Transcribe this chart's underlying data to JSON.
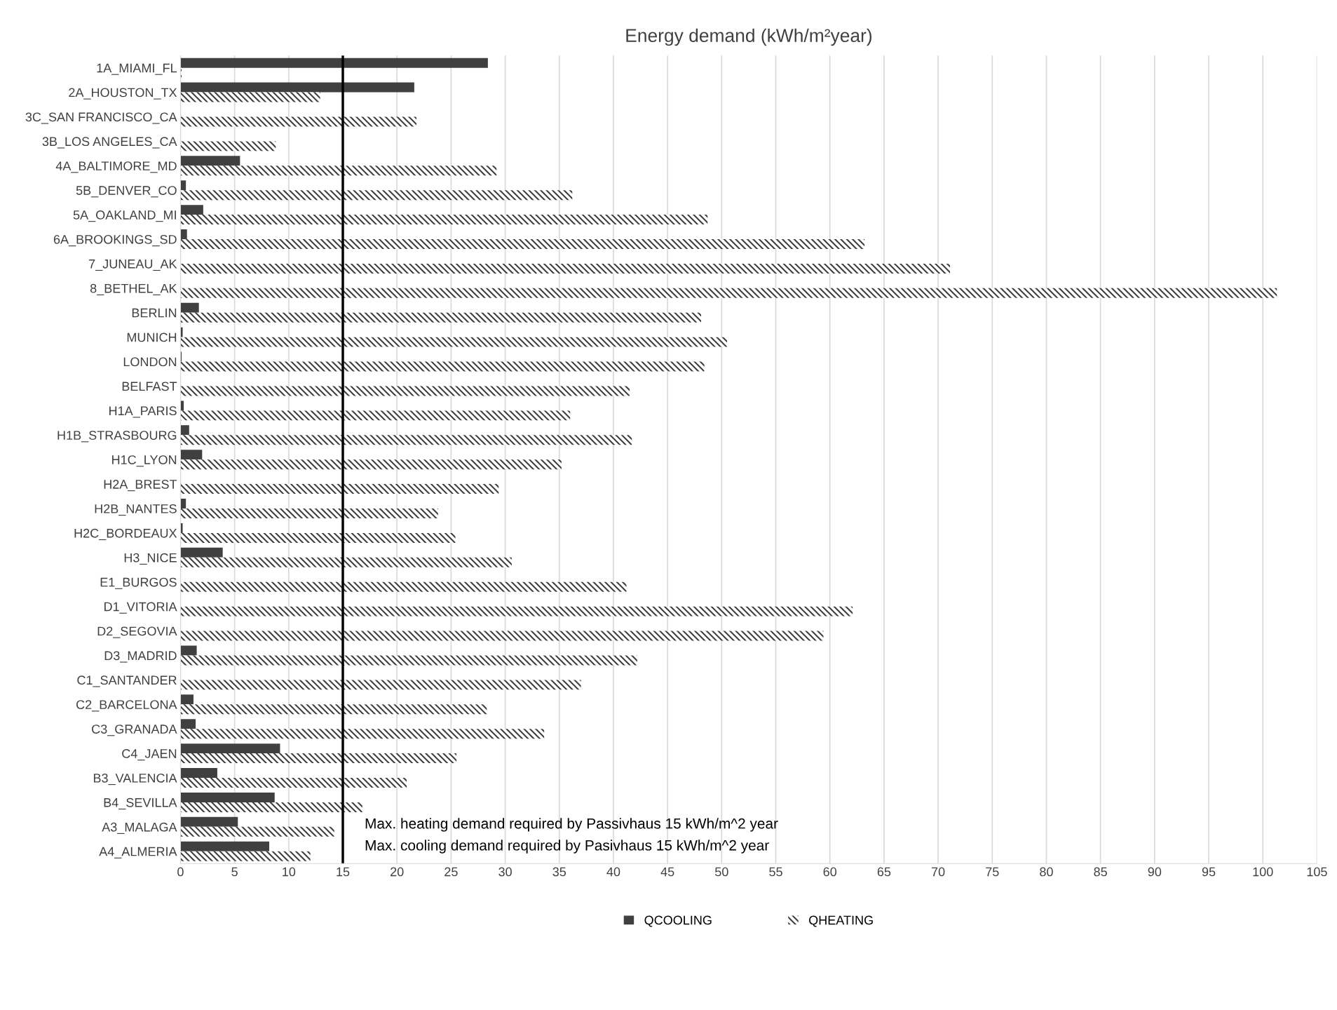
{
  "chart_data": {
    "type": "bar",
    "orientation": "horizontal",
    "title": "Energy demand (kWh/m²year)",
    "categories": [
      "1A_MIAMI_FL",
      "2A_HOUSTON_TX",
      "3C_SAN FRANCISCO_CA",
      "3B_LOS ANGELES_CA",
      "4A_BALTIMORE_MD",
      "5B_DENVER_CO",
      "5A_OAKLAND_MI",
      "6A_BROOKINGS_SD",
      "7_JUNEAU_AK",
      "8_BETHEL_AK",
      "BERLIN",
      "MUNICH",
      "LONDON",
      "BELFAST",
      "H1A_PARIS",
      "H1B_STRASBOURG",
      "H1C_LYON",
      "H2A_BREST",
      "H2B_NANTES",
      "H2C_BORDEAUX",
      "H3_NICE",
      "E1_BURGOS",
      "D1_VITORIA",
      "D2_SEGOVIA",
      "D3_MADRID",
      "C1_SANTANDER",
      "C2_BARCELONA",
      "C3_GRANADA",
      "C4_JAEN",
      "B3_VALENCIA",
      "B4_SEVILLA",
      "A3_MALAGA",
      "A4_ALMERIA"
    ],
    "series": [
      {
        "name": "QCOOLING",
        "color": "#404040",
        "values": [
          28.4,
          21.6,
          0,
          0,
          5.5,
          0.5,
          2.1,
          0.6,
          0,
          0,
          1.7,
          0.2,
          0.1,
          0,
          0.3,
          0.8,
          2.0,
          0,
          0.5,
          0.2,
          3.9,
          0,
          0,
          0,
          1.5,
          0,
          1.2,
          1.4,
          9.2,
          3.4,
          8.7,
          5.3,
          8.2
        ]
      },
      {
        "name": "QHEATING",
        "color": "#404040",
        "values": [
          0.1,
          12.9,
          21.8,
          8.8,
          29.2,
          36.2,
          48.7,
          63.2,
          71.1,
          101.3,
          48.1,
          50.5,
          48.4,
          41.5,
          36.0,
          41.7,
          35.2,
          29.4,
          23.8,
          25.4,
          30.6,
          41.2,
          62.1,
          59.4,
          42.2,
          37.0,
          28.3,
          33.6,
          25.5,
          20.9,
          16.8,
          14.2,
          12.0
        ]
      }
    ],
    "xlim": [
      0,
      105
    ],
    "xticks": [
      0,
      5,
      10,
      15,
      20,
      25,
      30,
      35,
      40,
      45,
      50,
      55,
      60,
      65,
      70,
      75,
      80,
      85,
      90,
      95,
      100,
      105
    ],
    "grid": "x",
    "legend": "bottom",
    "ref_lines": [
      {
        "axis": "x",
        "value": 15,
        "color": "#000000"
      }
    ],
    "annotations": [
      "Max. heating demand required by Passivhaus 15 kWh/m^2 year",
      "Max. cooling demand required by Pasivhaus 15 kWh/m^2 year"
    ]
  }
}
